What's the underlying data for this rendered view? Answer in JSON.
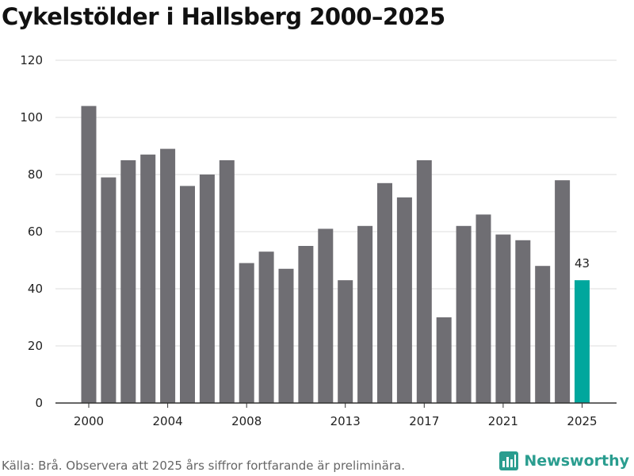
{
  "colors": {
    "bar": "#6f6e73",
    "highlight": "#00a79d",
    "grid": "#dddddd",
    "axis": "#333333",
    "brand": "#2a9d8f"
  },
  "chart_data": {
    "type": "bar",
    "title": "Cykelstölder i Hallsberg 2000–2025",
    "xlabel": "",
    "ylabel": "",
    "ylim": [
      0,
      120
    ],
    "yticks": [
      0,
      20,
      40,
      60,
      80,
      100,
      120
    ],
    "xtick_labels": [
      "2000",
      "2004",
      "2008",
      "2013",
      "2017",
      "2021",
      "2025"
    ],
    "categories": [
      "2000",
      "2001",
      "2002",
      "2003",
      "2004",
      "2005",
      "2006",
      "2007",
      "2008",
      "2009",
      "2010",
      "2011",
      "2012",
      "2013",
      "2014",
      "2015",
      "2016",
      "2017",
      "2018",
      "2019",
      "2020",
      "2021",
      "2022",
      "2023",
      "2024",
      "2025"
    ],
    "values": [
      104,
      79,
      85,
      87,
      89,
      76,
      80,
      85,
      49,
      53,
      47,
      55,
      61,
      43,
      62,
      77,
      72,
      85,
      30,
      62,
      66,
      59,
      57,
      48,
      78,
      43
    ],
    "highlight_category": "2025",
    "data_labels": [
      {
        "category": "2025",
        "text": "43"
      }
    ],
    "grid": true
  },
  "footer": {
    "source": "Källa: Brå. Observera att 2025 års siffror fortfarande är preliminära.",
    "brand": "Newsworthy",
    "brand_icon": "newsworthy-logo-icon"
  }
}
